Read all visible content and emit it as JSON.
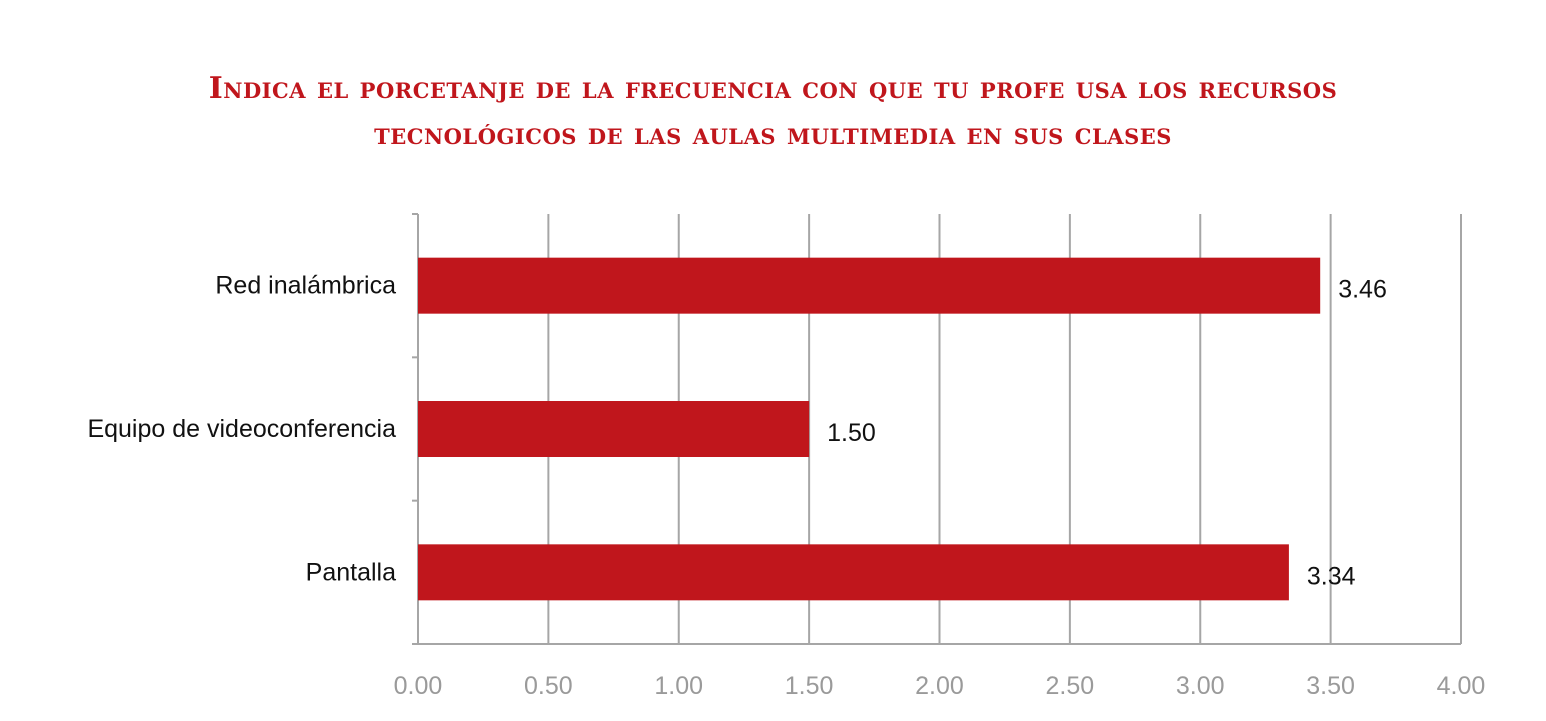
{
  "chart_data": {
    "type": "bar",
    "orientation": "horizontal",
    "title_lines": [
      "Indica el porcetanje de la frecuencia con que tu profe usa los recursos",
      "tecnológicos de las aulas multimedia en sus clases"
    ],
    "categories": [
      "Red inalámbrica",
      "Equipo de videoconferencia",
      "Pantalla"
    ],
    "values": [
      3.46,
      1.5,
      3.34
    ],
    "value_labels": [
      "3.46",
      "1.50",
      "3.34"
    ],
    "x_ticks": [
      "0.00",
      "0.50",
      "1.00",
      "1.50",
      "2.00",
      "2.50",
      "3.00",
      "3.50",
      "4.00"
    ],
    "xlim": [
      0,
      4
    ],
    "xlabel": "",
    "ylabel": "",
    "grid": true,
    "legend": "none",
    "bar_color": "#c0161c",
    "grid_color": "#a6a6a6",
    "tick_label_color": "#9a9a9a",
    "title_color": "#c0161c"
  }
}
